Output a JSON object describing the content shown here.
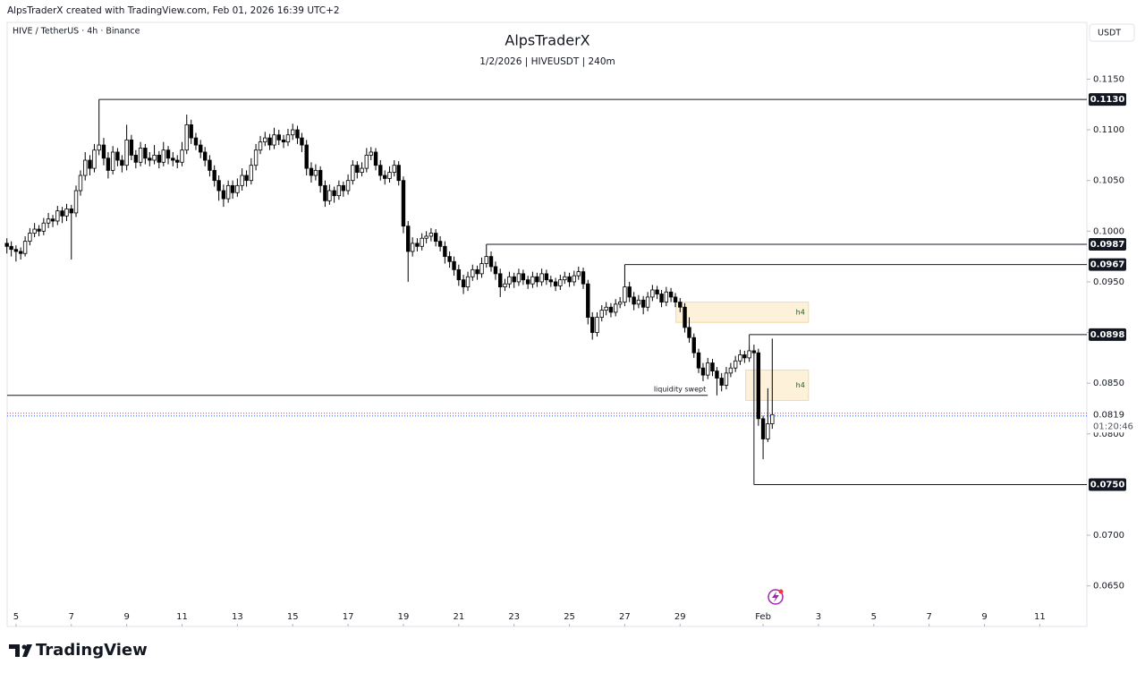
{
  "header": {
    "credit": "AlpsTraderX created with TradingView.com, Feb 01, 2026 16:39 UTC+2",
    "symbol": "HIVE / TetherUS · 4h · Binance",
    "currency": "USDT",
    "brand": "TradingView"
  },
  "chart_data": {
    "type": "candlestick",
    "title": "AlpsTraderX",
    "subtitle": "1/2/2026 | HIVEUSDT | 240m",
    "up_color": "#ffffff",
    "down_color": "#000000",
    "wick_color": "#000000",
    "xlim": [
      4.68,
      43.7
    ],
    "ylim": [
      0.061,
      0.1206
    ],
    "grid": false,
    "xticks": [
      5,
      7,
      9,
      11,
      13,
      15,
      17,
      19,
      21,
      23,
      25,
      27,
      29,
      {
        "value": 32,
        "label": "Feb"
      },
      {
        "value": 34,
        "label": "3"
      },
      {
        "value": 36,
        "label": "5"
      },
      {
        "value": 38,
        "label": "7"
      },
      {
        "value": 40,
        "label": "9"
      },
      {
        "value": 42,
        "label": "11"
      }
    ],
    "yticks": [
      {
        "value": 0.115,
        "label": "0.1150"
      },
      {
        "value": 0.11,
        "label": "0.1100"
      },
      {
        "value": 0.105,
        "label": "0.1050"
      },
      {
        "value": 0.1,
        "label": "0.1000"
      },
      {
        "value": 0.095,
        "label": "0.0950"
      },
      {
        "value": 0.09,
        "label": "0.0900"
      },
      {
        "value": 0.085,
        "label": "0.0850"
      },
      {
        "value": 0.08,
        "label": "0.0800"
      },
      {
        "value": 0.07,
        "label": "0.0700"
      },
      {
        "value": 0.065,
        "label": "0.0650"
      }
    ],
    "x": [
      4.67,
      4.83,
      5,
      5.17,
      5.33,
      5.5,
      5.67,
      5.83,
      6,
      6.17,
      6.33,
      6.5,
      6.67,
      6.83,
      7,
      7.17,
      7.33,
      7.5,
      7.67,
      7.83,
      8,
      8.17,
      8.33,
      8.5,
      8.67,
      8.83,
      9,
      9.17,
      9.33,
      9.5,
      9.67,
      9.83,
      10,
      10.17,
      10.33,
      10.5,
      10.67,
      10.83,
      11,
      11.17,
      11.33,
      11.5,
      11.67,
      11.83,
      12,
      12.17,
      12.33,
      12.5,
      12.67,
      12.83,
      13,
      13.17,
      13.33,
      13.5,
      13.67,
      13.83,
      14,
      14.17,
      14.33,
      14.5,
      14.67,
      14.83,
      15,
      15.17,
      15.33,
      15.5,
      15.67,
      15.83,
      16,
      16.17,
      16.33,
      16.5,
      16.67,
      16.83,
      17,
      17.17,
      17.33,
      17.5,
      17.67,
      17.83,
      18,
      18.17,
      18.33,
      18.5,
      18.67,
      18.83,
      19,
      19.17,
      19.33,
      19.5,
      19.67,
      19.83,
      20,
      20.17,
      20.33,
      20.5,
      20.67,
      20.83,
      21,
      21.17,
      21.33,
      21.5,
      21.67,
      21.83,
      22,
      22.17,
      22.33,
      22.5,
      22.67,
      22.83,
      23,
      23.17,
      23.33,
      23.5,
      23.67,
      23.83,
      24,
      24.17,
      24.33,
      24.5,
      24.67,
      24.83,
      25,
      25.17,
      25.33,
      25.5,
      25.67,
      25.83,
      26,
      26.17,
      26.33,
      26.5,
      26.67,
      26.83,
      27,
      27.17,
      27.33,
      27.5,
      27.67,
      27.83,
      28,
      28.17,
      28.33,
      28.5,
      28.67,
      28.83,
      29,
      29.17,
      29.33,
      29.5,
      29.67,
      29.83,
      30,
      30.17,
      30.33,
      30.5,
      30.67,
      30.83,
      31,
      31.17,
      31.33,
      31.5,
      31.67,
      31.83,
      32,
      32.17,
      32.33
    ],
    "ohlc": [
      [
        0.0988,
        0.0993,
        0.0978,
        0.0985
      ],
      [
        0.0985,
        0.099,
        0.0975,
        0.0982
      ],
      [
        0.0982,
        0.0986,
        0.097,
        0.098
      ],
      [
        0.098,
        0.0984,
        0.0972,
        0.0978
      ],
      [
        0.0978,
        0.0995,
        0.0975,
        0.099
      ],
      [
        0.099,
        0.1003,
        0.0986,
        0.0998
      ],
      [
        0.0998,
        0.1008,
        0.0994,
        0.1002
      ],
      [
        0.1002,
        0.1006,
        0.0995,
        0.1
      ],
      [
        0.1,
        0.1013,
        0.0996,
        0.1008
      ],
      [
        0.1008,
        0.1018,
        0.1003,
        0.1012
      ],
      [
        0.1012,
        0.1016,
        0.1004,
        0.101
      ],
      [
        0.101,
        0.1025,
        0.1006,
        0.102
      ],
      [
        0.102,
        0.1024,
        0.1008,
        0.1015
      ],
      [
        0.1015,
        0.1027,
        0.101,
        0.1022
      ],
      [
        0.1022,
        0.1026,
        0.0972,
        0.1018
      ],
      [
        0.1018,
        0.1045,
        0.1014,
        0.104
      ],
      [
        0.104,
        0.106,
        0.1035,
        0.1055
      ],
      [
        0.1055,
        0.1078,
        0.105,
        0.107
      ],
      [
        0.107,
        0.1075,
        0.1055,
        0.1062
      ],
      [
        0.1062,
        0.1086,
        0.1058,
        0.108
      ],
      [
        0.108,
        0.113,
        0.1075,
        0.1085
      ],
      [
        0.1085,
        0.1092,
        0.1065,
        0.1072
      ],
      [
        0.1072,
        0.1078,
        0.1052,
        0.106
      ],
      [
        0.106,
        0.1084,
        0.1056,
        0.1078
      ],
      [
        0.1078,
        0.1082,
        0.1064,
        0.107
      ],
      [
        0.107,
        0.1075,
        0.1058,
        0.1065
      ],
      [
        0.1065,
        0.1105,
        0.106,
        0.109
      ],
      [
        0.109,
        0.1095,
        0.107,
        0.1075
      ],
      [
        0.1075,
        0.108,
        0.1062,
        0.1068
      ],
      [
        0.1068,
        0.1088,
        0.1064,
        0.1082
      ],
      [
        0.1082,
        0.1086,
        0.1066,
        0.1072
      ],
      [
        0.1072,
        0.1078,
        0.1064,
        0.107
      ],
      [
        0.107,
        0.1085,
        0.1066,
        0.1075
      ],
      [
        0.1075,
        0.1079,
        0.1062,
        0.1068
      ],
      [
        0.1068,
        0.1088,
        0.1064,
        0.108
      ],
      [
        0.108,
        0.1084,
        0.1066,
        0.1072
      ],
      [
        0.1072,
        0.1078,
        0.1064,
        0.107
      ],
      [
        0.107,
        0.1075,
        0.1062,
        0.1068
      ],
      [
        0.1068,
        0.1088,
        0.1064,
        0.108
      ],
      [
        0.108,
        0.1115,
        0.1076,
        0.1105
      ],
      [
        0.1105,
        0.111,
        0.1086,
        0.1092
      ],
      [
        0.1092,
        0.1097,
        0.108,
        0.1085
      ],
      [
        0.1085,
        0.109,
        0.1072,
        0.1078
      ],
      [
        0.1078,
        0.1083,
        0.1064,
        0.107
      ],
      [
        0.107,
        0.1075,
        0.1054,
        0.106
      ],
      [
        0.106,
        0.1065,
        0.1044,
        0.105
      ],
      [
        0.105,
        0.1055,
        0.103,
        0.104
      ],
      [
        0.104,
        0.1046,
        0.1024,
        0.1032
      ],
      [
        0.1032,
        0.105,
        0.1028,
        0.1045
      ],
      [
        0.1045,
        0.105,
        0.1032,
        0.1038
      ],
      [
        0.1038,
        0.1052,
        0.1034,
        0.1045
      ],
      [
        0.1045,
        0.1062,
        0.104,
        0.1055
      ],
      [
        0.1055,
        0.106,
        0.1044,
        0.105
      ],
      [
        0.105,
        0.1072,
        0.1046,
        0.1065
      ],
      [
        0.1065,
        0.1086,
        0.106,
        0.108
      ],
      [
        0.108,
        0.1094,
        0.1076,
        0.1088
      ],
      [
        0.1088,
        0.1098,
        0.1084,
        0.1092
      ],
      [
        0.1092,
        0.1096,
        0.108,
        0.1085
      ],
      [
        0.1085,
        0.1102,
        0.1081,
        0.1095
      ],
      [
        0.1095,
        0.11,
        0.1085,
        0.109
      ],
      [
        0.109,
        0.1095,
        0.1082,
        0.1088
      ],
      [
        0.1088,
        0.1101,
        0.1084,
        0.1095
      ],
      [
        0.1095,
        0.1106,
        0.109,
        0.11
      ],
      [
        0.11,
        0.1104,
        0.1086,
        0.1092
      ],
      [
        0.1092,
        0.1097,
        0.1078,
        0.1085
      ],
      [
        0.1085,
        0.109,
        0.1055,
        0.1062
      ],
      [
        0.1062,
        0.1068,
        0.1048,
        0.1055
      ],
      [
        0.1055,
        0.1066,
        0.105,
        0.106
      ],
      [
        0.106,
        0.1064,
        0.1038,
        0.1045
      ],
      [
        0.1045,
        0.105,
        0.1024,
        0.103
      ],
      [
        0.103,
        0.1046,
        0.1026,
        0.104
      ],
      [
        0.104,
        0.1044,
        0.1028,
        0.1035
      ],
      [
        0.1035,
        0.105,
        0.1031,
        0.1045
      ],
      [
        0.1045,
        0.1049,
        0.1034,
        0.104
      ],
      [
        0.104,
        0.1056,
        0.1036,
        0.105
      ],
      [
        0.105,
        0.107,
        0.1046,
        0.1065
      ],
      [
        0.1065,
        0.1069,
        0.1052,
        0.1058
      ],
      [
        0.1058,
        0.1068,
        0.1054,
        0.1062
      ],
      [
        0.1062,
        0.1082,
        0.1058,
        0.1075
      ],
      [
        0.1075,
        0.1083,
        0.107,
        0.1078
      ],
      [
        0.1078,
        0.1082,
        0.106,
        0.1065
      ],
      [
        0.1065,
        0.107,
        0.105,
        0.1055
      ],
      [
        0.1055,
        0.106,
        0.1046,
        0.1052
      ],
      [
        0.1052,
        0.1064,
        0.1048,
        0.1058
      ],
      [
        0.1058,
        0.107,
        0.1054,
        0.1065
      ],
      [
        0.1065,
        0.1069,
        0.1045,
        0.105
      ],
      [
        0.105,
        0.1054,
        0.0998,
        0.1005
      ],
      [
        0.1005,
        0.101,
        0.095,
        0.098
      ],
      [
        0.098,
        0.0994,
        0.0975,
        0.0988
      ],
      [
        0.0988,
        0.0993,
        0.098,
        0.0985
      ],
      [
        0.0985,
        0.0998,
        0.0981,
        0.0993
      ],
      [
        0.0993,
        0.1,
        0.0988,
        0.0995
      ],
      [
        0.0995,
        0.1003,
        0.099,
        0.0998
      ],
      [
        0.0998,
        0.1002,
        0.0985,
        0.099
      ],
      [
        0.099,
        0.0995,
        0.098,
        0.0985
      ],
      [
        0.0985,
        0.099,
        0.0968,
        0.0975
      ],
      [
        0.0975,
        0.098,
        0.0964,
        0.097
      ],
      [
        0.097,
        0.0975,
        0.0956,
        0.0962
      ],
      [
        0.0962,
        0.0967,
        0.0946,
        0.0952
      ],
      [
        0.0952,
        0.0957,
        0.0938,
        0.0945
      ],
      [
        0.0945,
        0.096,
        0.0941,
        0.0955
      ],
      [
        0.0955,
        0.0967,
        0.0951,
        0.0962
      ],
      [
        0.0962,
        0.0966,
        0.0952,
        0.0958
      ],
      [
        0.0958,
        0.0974,
        0.0954,
        0.0968
      ],
      [
        0.0968,
        0.0987,
        0.0964,
        0.0975
      ],
      [
        0.0975,
        0.098,
        0.096,
        0.0965
      ],
      [
        0.0965,
        0.097,
        0.0952,
        0.0958
      ],
      [
        0.0958,
        0.0963,
        0.0935,
        0.0945
      ],
      [
        0.0945,
        0.0953,
        0.0941,
        0.0948
      ],
      [
        0.0948,
        0.096,
        0.0944,
        0.0955
      ],
      [
        0.0955,
        0.0959,
        0.0944,
        0.095
      ],
      [
        0.095,
        0.0963,
        0.0946,
        0.0958
      ],
      [
        0.0958,
        0.0962,
        0.0947,
        0.0952
      ],
      [
        0.0952,
        0.0956,
        0.0943,
        0.0948
      ],
      [
        0.0948,
        0.096,
        0.0944,
        0.0955
      ],
      [
        0.0955,
        0.0959,
        0.0945,
        0.095
      ],
      [
        0.095,
        0.0963,
        0.0946,
        0.0958
      ],
      [
        0.0958,
        0.0962,
        0.0947,
        0.0952
      ],
      [
        0.0952,
        0.0956,
        0.0945,
        0.095
      ],
      [
        0.095,
        0.0954,
        0.0941,
        0.0946
      ],
      [
        0.0946,
        0.0957,
        0.0942,
        0.0952
      ],
      [
        0.0952,
        0.096,
        0.0948,
        0.0955
      ],
      [
        0.0955,
        0.0959,
        0.0945,
        0.095
      ],
      [
        0.095,
        0.0961,
        0.0946,
        0.0956
      ],
      [
        0.0956,
        0.0965,
        0.0952,
        0.096
      ],
      [
        0.096,
        0.0964,
        0.0943,
        0.0948
      ],
      [
        0.0948,
        0.0952,
        0.0908,
        0.0915
      ],
      [
        0.0915,
        0.092,
        0.0893,
        0.09
      ],
      [
        0.09,
        0.092,
        0.0896,
        0.0915
      ],
      [
        0.0915,
        0.0927,
        0.0911,
        0.0922
      ],
      [
        0.0922,
        0.093,
        0.0917,
        0.0925
      ],
      [
        0.0925,
        0.0929,
        0.0915,
        0.092
      ],
      [
        0.092,
        0.0933,
        0.0916,
        0.0928
      ],
      [
        0.0928,
        0.0935,
        0.0924,
        0.093
      ],
      [
        0.093,
        0.0967,
        0.0926,
        0.0945
      ],
      [
        0.0945,
        0.095,
        0.093,
        0.0935
      ],
      [
        0.0935,
        0.094,
        0.0922,
        0.0928
      ],
      [
        0.0928,
        0.0937,
        0.0924,
        0.0932
      ],
      [
        0.0932,
        0.0936,
        0.0918,
        0.0925
      ],
      [
        0.0925,
        0.094,
        0.0921,
        0.0935
      ],
      [
        0.0935,
        0.0947,
        0.0931,
        0.0942
      ],
      [
        0.0942,
        0.0946,
        0.0933,
        0.0938
      ],
      [
        0.0938,
        0.0942,
        0.0925,
        0.093
      ],
      [
        0.093,
        0.0945,
        0.0926,
        0.094
      ],
      [
        0.094,
        0.0944,
        0.093,
        0.0935
      ],
      [
        0.0935,
        0.0939,
        0.0925,
        0.093
      ],
      [
        0.093,
        0.0934,
        0.092,
        0.0925
      ],
      [
        0.0925,
        0.0929,
        0.09,
        0.0905
      ],
      [
        0.0905,
        0.0915,
        0.089,
        0.0895
      ],
      [
        0.0895,
        0.0899,
        0.0875,
        0.088
      ],
      [
        0.088,
        0.0884,
        0.086,
        0.0865
      ],
      [
        0.0865,
        0.087,
        0.0852,
        0.0858
      ],
      [
        0.0858,
        0.0875,
        0.0854,
        0.087
      ],
      [
        0.087,
        0.0874,
        0.0857,
        0.0862
      ],
      [
        0.0862,
        0.0866,
        0.0838,
        0.0855
      ],
      [
        0.0855,
        0.086,
        0.0842,
        0.0848
      ],
      [
        0.0848,
        0.0866,
        0.0844,
        0.086
      ],
      [
        0.086,
        0.087,
        0.0856,
        0.0865
      ],
      [
        0.0865,
        0.0877,
        0.0861,
        0.0872
      ],
      [
        0.0872,
        0.0883,
        0.0868,
        0.0878
      ],
      [
        0.0878,
        0.0882,
        0.087,
        0.0875
      ],
      [
        0.0875,
        0.0888,
        0.0871,
        0.0882
      ],
      [
        0.0882,
        0.0888,
        0.0876,
        0.088
      ],
      [
        0.088,
        0.0884,
        0.0808,
        0.0815
      ],
      [
        0.0815,
        0.0818,
        0.0775,
        0.0795
      ],
      [
        0.0795,
        0.0845,
        0.0792,
        0.081
      ],
      [
        0.081,
        0.0894,
        0.0805,
        0.0819
      ]
    ],
    "levels": [
      {
        "value": 0.113,
        "label": "0.1130",
        "start": 8.0
      },
      {
        "value": 0.0987,
        "label": "0.0987",
        "start": 22.0
      },
      {
        "value": 0.0967,
        "label": "0.0967",
        "start": 27.0
      },
      {
        "value": 0.0898,
        "label": "0.0898",
        "start": 31.5
      },
      {
        "value": 0.075,
        "label": "0.0750",
        "start": 31.67
      }
    ],
    "annotations": [
      {
        "text": "liquidity swept",
        "value": 0.0838,
        "start": 4.68,
        "end": 30.0
      }
    ],
    "zones": [
      {
        "label": "h4",
        "y0": 0.091,
        "y1": 0.093,
        "x0": 28.85,
        "x1": 33.64,
        "color": "#fdf1da"
      },
      {
        "label": "h4",
        "y0": 0.0833,
        "y1": 0.0863,
        "x0": 31.37,
        "x1": 33.64,
        "color": "#fdf1da"
      }
    ],
    "last_price": {
      "value": 0.0819,
      "label": "0.0819",
      "countdown": "01:20:46"
    }
  }
}
